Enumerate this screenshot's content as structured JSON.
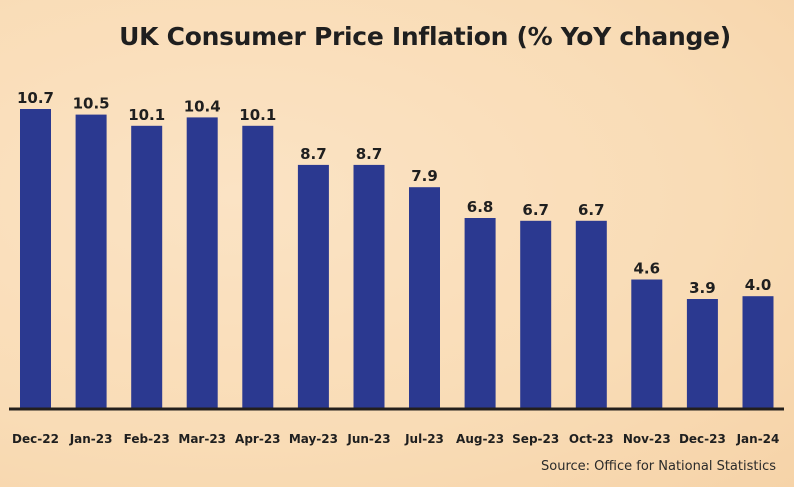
{
  "chart_data": {
    "type": "bar",
    "title": "UK Consumer Price Inflation (% YoY change)",
    "xlabel": "",
    "ylabel": "",
    "categories": [
      "Dec-22",
      "Jan-23",
      "Feb-23",
      "Mar-23",
      "Apr-23",
      "May-23",
      "Jun-23",
      "Jul-23",
      "Aug-23",
      "Sep-23",
      "Oct-23",
      "Nov-23",
      "Dec-23",
      "Jan-24"
    ],
    "values": [
      10.7,
      10.5,
      10.1,
      10.4,
      10.1,
      8.7,
      8.7,
      7.9,
      6.8,
      6.7,
      6.7,
      4.6,
      3.9,
      4.0
    ],
    "value_labels": [
      "10.7",
      "10.5",
      "10.1",
      "10.4",
      "10.1",
      "8.7",
      "8.7",
      "7.9",
      "6.8",
      "6.7",
      "6.7",
      "4.6",
      "3.9",
      "4.0"
    ],
    "ylim": [
      0,
      10.7
    ],
    "grid": false,
    "legend": "none",
    "bar_color": "#2b3990",
    "source": "Source: Office for National Statistics"
  }
}
